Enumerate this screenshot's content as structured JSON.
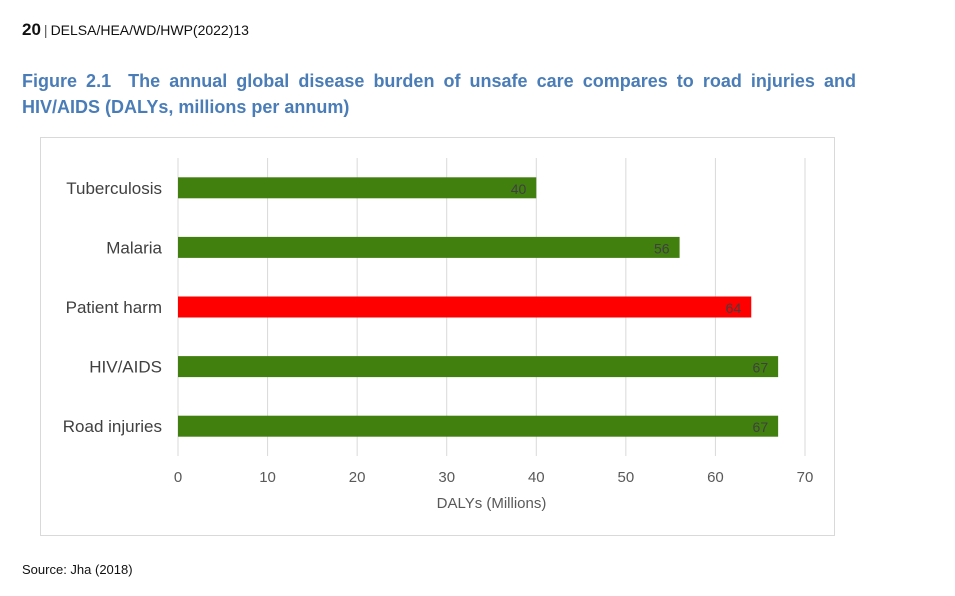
{
  "header": {
    "page_number": "20",
    "separator": "|",
    "doc_code": "DELSA/HEA/WD/HWP(2022)13"
  },
  "figure": {
    "label": "Figure 2.1",
    "title": "The annual global disease burden of unsafe care compares to road injuries and HIV/AIDS (DALYs, millions per annum)"
  },
  "source": "Source: Jha (2018)",
  "chart_data": {
    "type": "bar",
    "orientation": "horizontal",
    "categories": [
      "Tuberculosis",
      "Malaria",
      "Patient harm",
      "HIV/AIDS",
      "Road injuries"
    ],
    "values": [
      40,
      56,
      64,
      67,
      67
    ],
    "data_labels": [
      "40",
      "56",
      "64",
      "67",
      "67"
    ],
    "colors": [
      "#41800f",
      "#41800f",
      "#ff0000",
      "#41800f",
      "#41800f"
    ],
    "xlabel": "DALYs (Millions)",
    "ylabel": "",
    "xlim": [
      0,
      70
    ],
    "xticks": [
      0,
      10,
      20,
      30,
      40,
      50,
      60,
      70
    ],
    "grid": "vertical",
    "legend": "none"
  }
}
